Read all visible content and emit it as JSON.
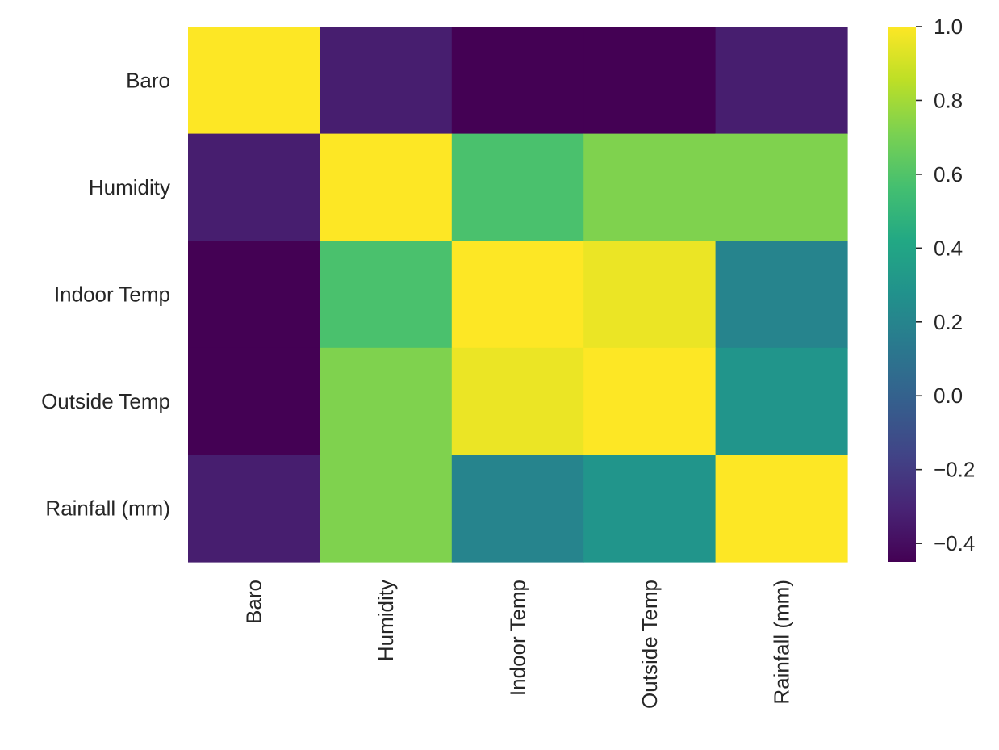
{
  "chart_data": {
    "type": "heatmap",
    "title": "",
    "xlabel": "",
    "ylabel": "",
    "categories": [
      "Baro",
      "Humidity",
      "Indoor Temp",
      "Outside Temp",
      "Rainfall (mm)"
    ],
    "x_labels": [
      "Baro",
      "Humidity",
      "Indoor Temp",
      "Outside Temp",
      "Rainfall (mm)"
    ],
    "y_labels": [
      "Baro",
      "Humidity",
      "Indoor Temp",
      "Outside Temp",
      "Rainfall (mm)"
    ],
    "values": [
      [
        1.0,
        -0.33,
        -0.45,
        -0.45,
        -0.33
      ],
      [
        -0.33,
        1.0,
        0.58,
        0.72,
        0.72
      ],
      [
        -0.45,
        0.58,
        1.0,
        0.96,
        0.2
      ],
      [
        -0.45,
        0.72,
        0.96,
        1.0,
        0.3
      ],
      [
        -0.33,
        0.72,
        0.2,
        0.3,
        1.0
      ]
    ],
    "colormap": "viridis",
    "colorbar": {
      "vmin": -0.45,
      "vmax": 1.0,
      "ticks": [
        1.0,
        0.8,
        0.6,
        0.4,
        0.2,
        0.0,
        -0.2,
        -0.4
      ],
      "tick_labels": [
        "1.0",
        "0.8",
        "0.6",
        "0.4",
        "0.2",
        "0.0",
        "−0.2",
        "−0.4"
      ]
    }
  }
}
